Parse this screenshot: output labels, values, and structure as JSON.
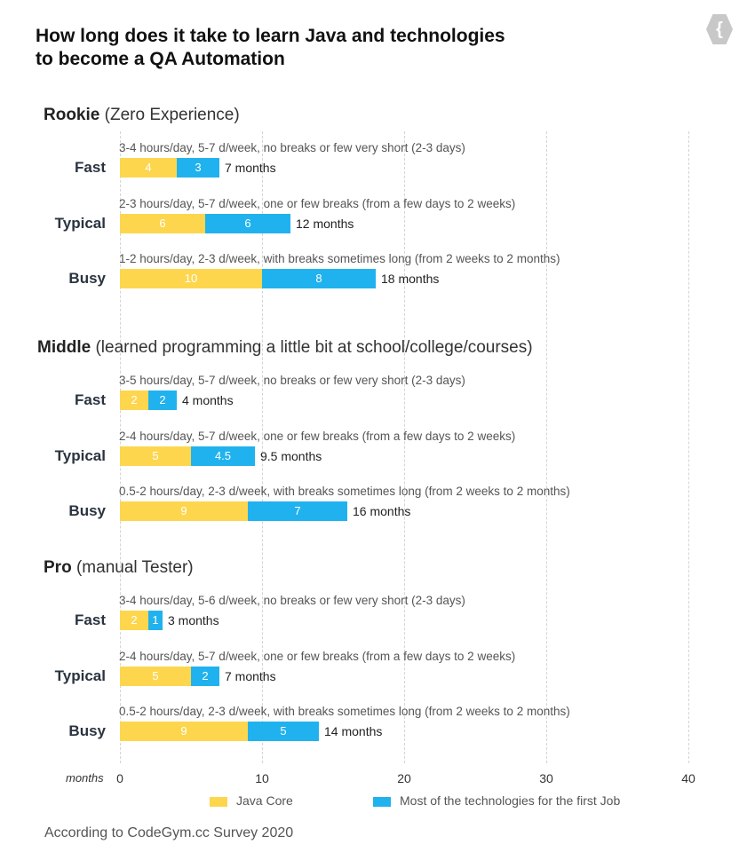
{
  "chart_data": {
    "type": "bar",
    "orientation": "horizontal-stacked",
    "title": "How long does it take to learn Java and technologies to become a QA Automation",
    "xlabel": "months",
    "xlim": [
      0,
      40
    ],
    "xticks": [
      "0",
      "10",
      "20",
      "30",
      "40"
    ],
    "legend": [
      {
        "name": "Java Core",
        "color": "#FDD64E"
      },
      {
        "name": "Most of the technologies for the first Job",
        "color": "#20B2EE"
      }
    ],
    "groups": [
      {
        "name": "Rookie",
        "desc": "(Zero Experience)",
        "rows": [
          {
            "label": "Fast",
            "note": "3-4 hours/day, 5-7 d/week, no breaks or few very short (2-3 days)",
            "values": [
              4,
              3
            ],
            "value_labels": [
              "4",
              "3"
            ],
            "total": "7 months"
          },
          {
            "label": "Typical",
            "note": "2-3 hours/day, 5-7 d/week, one or few breaks (from a few days to 2 weeks)",
            "values": [
              6,
              6
            ],
            "value_labels": [
              "6",
              "6"
            ],
            "total": "12 months"
          },
          {
            "label": "Busy",
            "note": "1-2 hours/day, 2-3 d/week, with breaks sometimes long (from 2 weeks to 2 months)",
            "values": [
              10,
              8
            ],
            "value_labels": [
              "10",
              "8"
            ],
            "total": "18 months"
          }
        ]
      },
      {
        "name": "Middle",
        "desc": "(learned programming a little bit at school/college/courses)",
        "rows": [
          {
            "label": "Fast",
            "note": "3-5 hours/day, 5-7 d/week, no breaks or few very short (2-3 days)",
            "values": [
              2,
              2
            ],
            "value_labels": [
              "2",
              "2"
            ],
            "total": "4 months"
          },
          {
            "label": "Typical",
            "note": "2-4 hours/day, 5-7 d/week, one or few breaks (from a few days to 2 weeks)",
            "values": [
              5,
              4.5
            ],
            "value_labels": [
              "5",
              "4.5"
            ],
            "total": "9.5 months"
          },
          {
            "label": "Busy",
            "note": "0.5-2 hours/day, 2-3 d/week, with breaks sometimes long (from 2 weeks to 2 months)",
            "values": [
              9,
              7
            ],
            "value_labels": [
              "9",
              "7"
            ],
            "total": "16 months"
          }
        ]
      },
      {
        "name": "Pro",
        "desc": "(manual Tester)",
        "rows": [
          {
            "label": "Fast",
            "note": "3-4 hours/day, 5-6 d/week, no breaks or few very short (2-3 days)",
            "values": [
              2,
              1
            ],
            "value_labels": [
              "2",
              "1"
            ],
            "total": "3 months"
          },
          {
            "label": "Typical",
            "note": "2-4 hours/day, 5-7 d/week, one or few breaks (from a few days to 2 weeks)",
            "values": [
              5,
              2
            ],
            "value_labels": [
              "5",
              "2"
            ],
            "total": "7 months"
          },
          {
            "label": "Busy",
            "note": "0.5-2 hours/day, 2-3 d/week, with breaks sometimes long (from 2 weeks to 2 months)",
            "values": [
              9,
              5
            ],
            "value_labels": [
              "9",
              "5"
            ],
            "total": "14 months"
          }
        ]
      }
    ],
    "source": "According to CodeGym.cc Survey 2020"
  },
  "title_line1": "How long does it take to learn Java and technologies",
  "title_line2": "to become a QA Automation",
  "logo_text": "{"
}
